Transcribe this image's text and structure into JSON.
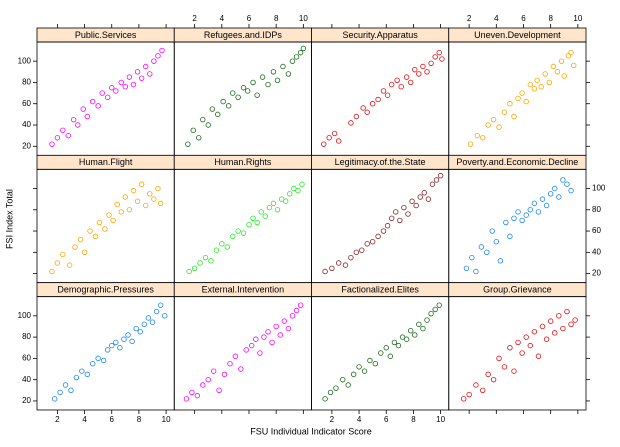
{
  "chart_data": {
    "type": "scatter",
    "x_label": "FSU Individual Indicator Score",
    "y_label": "FSI Index Total",
    "xlim": [
      0.5,
      10.6
    ],
    "ylim": [
      11.5,
      118
    ],
    "xticks": [
      2,
      4,
      6,
      8,
      10
    ],
    "yticks": [
      20,
      40,
      60,
      80,
      100
    ],
    "strip_color": "#ffe5cc",
    "panels": [
      {
        "title": "Public.Services",
        "color": "#ff00ff",
        "x": [
          1.6,
          2.0,
          2.4,
          2.8,
          3.2,
          3.5,
          3.9,
          4.2,
          4.6,
          5.0,
          5.3,
          5.7,
          6.0,
          6.3,
          6.7,
          7.0,
          7.3,
          7.6,
          7.9,
          8.2,
          8.5,
          8.8,
          9.1,
          9.4,
          9.7
        ],
        "y": [
          22,
          28,
          35,
          30,
          45,
          40,
          55,
          48,
          62,
          58,
          70,
          66,
          75,
          72,
          80,
          76,
          85,
          78,
          90,
          84,
          95,
          88,
          100,
          105,
          110
        ]
      },
      {
        "title": "Refugees.and.IDPs",
        "color": "#1a6e1a",
        "x": [
          1.5,
          1.9,
          2.3,
          2.6,
          3.0,
          3.3,
          3.7,
          4.1,
          4.5,
          4.8,
          5.2,
          5.6,
          5.9,
          6.3,
          6.6,
          7.0,
          7.4,
          7.8,
          8.1,
          8.5,
          8.9,
          9.2,
          9.5,
          9.8,
          10.0
        ],
        "y": [
          22,
          35,
          28,
          45,
          40,
          55,
          50,
          62,
          58,
          70,
          66,
          75,
          72,
          80,
          68,
          85,
          78,
          90,
          82,
          95,
          88,
          100,
          104,
          108,
          112
        ]
      },
      {
        "title": "Security.Apparatus",
        "color": "#dd1111",
        "x": [
          1.4,
          1.8,
          2.2,
          2.5,
          3.4,
          3.8,
          4.3,
          4.6,
          5.0,
          5.4,
          5.8,
          6.1,
          6.4,
          6.8,
          7.1,
          7.5,
          7.8,
          8.1,
          8.4,
          8.7,
          9.0,
          9.3,
          9.6,
          9.9,
          10.1
        ],
        "y": [
          22,
          28,
          32,
          25,
          42,
          48,
          56,
          52,
          60,
          64,
          72,
          68,
          78,
          82,
          76,
          85,
          80,
          92,
          88,
          95,
          90,
          98,
          104,
          108,
          102
        ]
      },
      {
        "title": "Uneven.Development",
        "color": "#ffa500",
        "x": [
          2.1,
          2.6,
          3.0,
          3.4,
          3.8,
          4.2,
          4.6,
          5.0,
          5.3,
          5.6,
          5.9,
          6.2,
          6.5,
          6.8,
          7.0,
          7.3,
          7.6,
          7.9,
          8.2,
          8.5,
          8.8,
          9.0,
          9.3,
          9.5,
          9.7
        ],
        "y": [
          22,
          30,
          28,
          40,
          45,
          38,
          52,
          60,
          48,
          65,
          70,
          62,
          78,
          74,
          82,
          76,
          88,
          80,
          95,
          90,
          100,
          86,
          105,
          108,
          96
        ]
      },
      {
        "title": "Human.Flight",
        "color": "#ffa500",
        "x": [
          1.6,
          2.0,
          2.4,
          2.9,
          3.3,
          3.7,
          4.0,
          4.4,
          4.8,
          5.1,
          5.5,
          5.8,
          6.1,
          6.4,
          6.7,
          7.0,
          7.3,
          7.6,
          7.9,
          8.2,
          8.5,
          8.8,
          9.1,
          9.4,
          9.6
        ],
        "y": [
          22,
          30,
          38,
          28,
          45,
          52,
          40,
          60,
          55,
          68,
          62,
          75,
          70,
          85,
          78,
          92,
          80,
          98,
          88,
          104,
          84,
          95,
          90,
          100,
          86
        ]
      },
      {
        "title": "Human.Rights",
        "color": "#22ee22",
        "x": [
          1.6,
          2.0,
          2.4,
          2.8,
          3.2,
          3.6,
          4.0,
          4.4,
          4.8,
          5.2,
          5.6,
          6.0,
          6.3,
          6.6,
          6.9,
          7.2,
          7.5,
          7.8,
          8.1,
          8.4,
          8.7,
          9.0,
          9.3,
          9.6,
          9.9
        ],
        "y": [
          22,
          25,
          30,
          35,
          32,
          42,
          48,
          45,
          55,
          60,
          58,
          66,
          72,
          68,
          78,
          74,
          82,
          86,
          80,
          90,
          88,
          95,
          100,
          98,
          104
        ]
      },
      {
        "title": "Legitimacy.of.the.State",
        "color": "#8b2323",
        "x": [
          1.5,
          2.0,
          2.5,
          3.0,
          3.4,
          3.8,
          4.2,
          4.6,
          5.0,
          5.4,
          5.8,
          6.1,
          6.4,
          6.7,
          7.0,
          7.3,
          7.6,
          7.9,
          8.2,
          8.5,
          8.8,
          9.1,
          9.4,
          9.7,
          10.0
        ],
        "y": [
          22,
          25,
          30,
          28,
          35,
          40,
          42,
          48,
          50,
          55,
          60,
          65,
          72,
          78,
          70,
          82,
          76,
          88,
          84,
          92,
          96,
          90,
          104,
          108,
          112
        ]
      },
      {
        "title": "Poverty.and.Economic.Decline",
        "color": "#1e88ee",
        "x": [
          1.8,
          2.2,
          2.5,
          2.9,
          3.3,
          3.7,
          4.0,
          4.3,
          4.7,
          5.0,
          5.3,
          5.6,
          5.9,
          6.2,
          6.5,
          6.8,
          7.1,
          7.4,
          7.7,
          8.0,
          8.3,
          8.6,
          8.9,
          9.2,
          9.5
        ],
        "y": [
          25,
          35,
          22,
          45,
          40,
          60,
          50,
          32,
          68,
          55,
          72,
          78,
          70,
          75,
          80,
          86,
          78,
          90,
          84,
          95,
          100,
          92,
          108,
          104,
          98
        ]
      },
      {
        "title": "Demographic.Pressures",
        "color": "#1e88ee",
        "x": [
          1.8,
          2.2,
          2.6,
          3.0,
          3.4,
          3.8,
          4.2,
          4.6,
          5.0,
          5.4,
          5.7,
          6.0,
          6.3,
          6.6,
          6.9,
          7.2,
          7.5,
          7.8,
          8.1,
          8.4,
          8.7,
          9.0,
          9.3,
          9.6,
          9.9
        ],
        "y": [
          22,
          28,
          35,
          30,
          42,
          48,
          45,
          55,
          60,
          58,
          68,
          72,
          75,
          70,
          78,
          82,
          76,
          88,
          85,
          92,
          98,
          94,
          104,
          110,
          100
        ]
      },
      {
        "title": "External.Intervention",
        "color": "#ff00ff",
        "x": [
          1.4,
          1.8,
          2.2,
          2.6,
          3.0,
          3.4,
          3.8,
          4.2,
          4.6,
          5.0,
          5.4,
          5.8,
          6.2,
          6.5,
          6.8,
          7.1,
          7.4,
          7.7,
          8.0,
          8.3,
          8.6,
          8.9,
          9.2,
          9.5,
          9.8
        ],
        "y": [
          22,
          28,
          25,
          35,
          40,
          48,
          30,
          45,
          55,
          62,
          50,
          68,
          72,
          78,
          65,
          80,
          85,
          75,
          90,
          82,
          95,
          88,
          100,
          105,
          110
        ]
      },
      {
        "title": "Factionalized.Elites",
        "color": "#1a6e1a",
        "x": [
          1.5,
          1.9,
          2.3,
          2.8,
          3.2,
          3.6,
          4.0,
          4.4,
          4.8,
          5.2,
          5.6,
          6.0,
          6.3,
          6.6,
          6.9,
          7.2,
          7.5,
          7.8,
          8.1,
          8.4,
          8.7,
          9.0,
          9.3,
          9.6,
          9.9
        ],
        "y": [
          22,
          28,
          32,
          40,
          35,
          45,
          52,
          48,
          58,
          55,
          65,
          70,
          62,
          75,
          72,
          80,
          78,
          86,
          82,
          92,
          88,
          96,
          102,
          106,
          110
        ]
      },
      {
        "title": "Group.Grievance",
        "color": "#dd1111",
        "x": [
          1.6,
          2.0,
          2.5,
          3.0,
          3.4,
          3.8,
          4.2,
          4.6,
          5.0,
          5.3,
          5.6,
          5.9,
          6.2,
          6.5,
          6.8,
          7.1,
          7.4,
          7.7,
          8.0,
          8.3,
          8.6,
          8.9,
          9.2,
          9.5,
          9.8
        ],
        "y": [
          22,
          26,
          35,
          30,
          45,
          40,
          60,
          52,
          70,
          48,
          75,
          65,
          80,
          72,
          85,
          62,
          90,
          78,
          95,
          84,
          100,
          88,
          104,
          92,
          96
        ]
      }
    ]
  }
}
